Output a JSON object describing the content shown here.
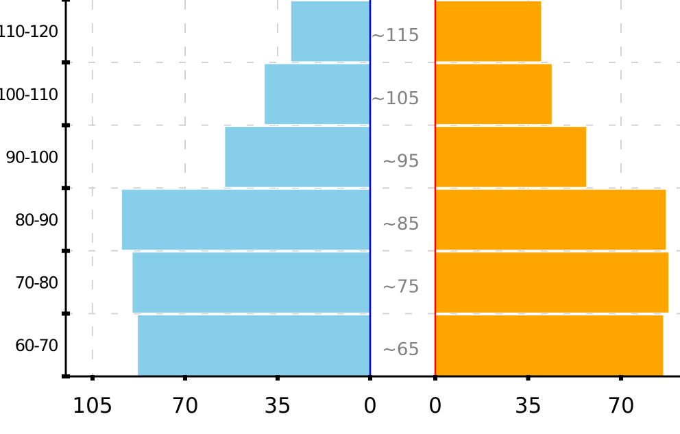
{
  "chart_data": {
    "type": "bar",
    "orientation": "horizontal",
    "subtype": "population-pyramid (butterfly)",
    "title": "",
    "categories": [
      "60-70",
      "70-80",
      "80-90",
      "90-100",
      "100-110",
      "110-120"
    ],
    "center_labels": [
      "~65",
      "~75",
      "~85",
      "~95",
      "~105",
      "~115"
    ],
    "series": [
      {
        "name": "left",
        "side": "left",
        "color": "#87CEEB",
        "axis_color": "#0000FF",
        "values": [
          88,
          90,
          94,
          55,
          40,
          30
        ]
      },
      {
        "name": "right",
        "side": "right",
        "color": "#FFA500",
        "axis_color": "#FF0000",
        "values": [
          86,
          88,
          87,
          57,
          44,
          40
        ]
      }
    ],
    "left_axis": {
      "ticks": [
        105,
        70,
        35,
        0
      ],
      "tick_labels": [
        "105",
        "70",
        "35",
        "0"
      ]
    },
    "right_axis": {
      "ticks": [
        0,
        35,
        70
      ],
      "tick_labels": [
        "0",
        "35",
        "70"
      ]
    },
    "xlabel": "",
    "ylabel": "",
    "grid": true,
    "grid_style": "dashed light gray",
    "legend": null
  }
}
